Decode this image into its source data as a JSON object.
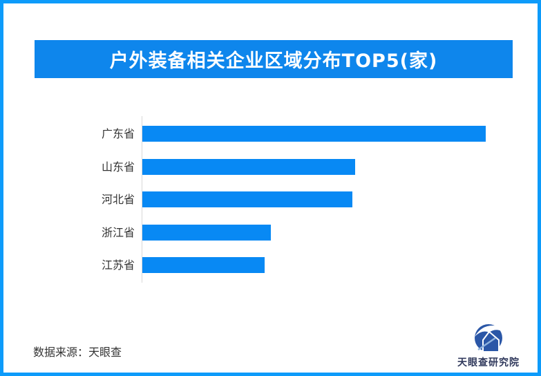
{
  "page": {
    "border_color": "#0D9BFA",
    "background": "#FFFFFF"
  },
  "header": {
    "title": "户外装备相关企业区域分布TOP5(家)",
    "background": "#0E86EC",
    "text_color": "#FFFFFF"
  },
  "chart_data": {
    "type": "bar",
    "orientation": "horizontal",
    "title": "户外装备相关企业区域分布TOP5(家)",
    "categories": [
      "广东省",
      "山东省",
      "河北省",
      "浙江省",
      "江苏省"
    ],
    "values_relative_pct": [
      100,
      62.0,
      61.2,
      37.4,
      35.6
    ],
    "value_labels_shown": false,
    "xlabel": "",
    "ylabel": "",
    "grid": false,
    "legend": "none",
    "bar_color": "#0889F4",
    "axis_line_color": "#D8D8D8",
    "note": "no numeric axis or data labels are rendered; values are relative bar lengths (max = 100)"
  },
  "footer": {
    "source_label": "数据来源：天眼查",
    "logo_text": "天眼查研究院",
    "logo_mark": "tianyancha-eye-house-logo",
    "logo_color": "#2B57A7",
    "logo_accent_color": "#8FB3DE",
    "logo_text_color": "#30395C"
  }
}
